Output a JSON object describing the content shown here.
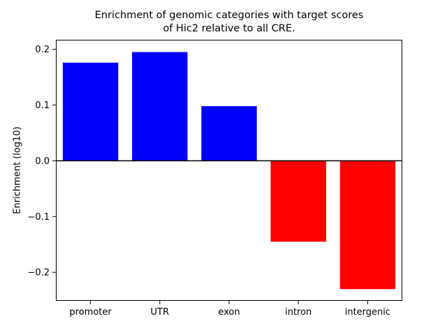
{
  "chart_data": {
    "type": "bar",
    "title_line1": "Enrichment of genomic categories with target scores",
    "title_line2": "of Hic2 relative to all CRE.",
    "ylabel": "Enrichment (log10)",
    "xlabel": "",
    "categories": [
      "promoter",
      "UTR",
      "exon",
      "intron",
      "intergenic"
    ],
    "values": [
      0.176,
      0.195,
      0.098,
      -0.145,
      -0.23
    ],
    "positive_color": "#0000ff",
    "negative_color": "#ff0000",
    "yticks": [
      -0.2,
      -0.1,
      0.0,
      0.1,
      0.2
    ],
    "ylim": [
      -0.251,
      0.217
    ],
    "zero_line": true,
    "grid": false,
    "legend": "none",
    "bar_width_fraction": 0.8
  }
}
